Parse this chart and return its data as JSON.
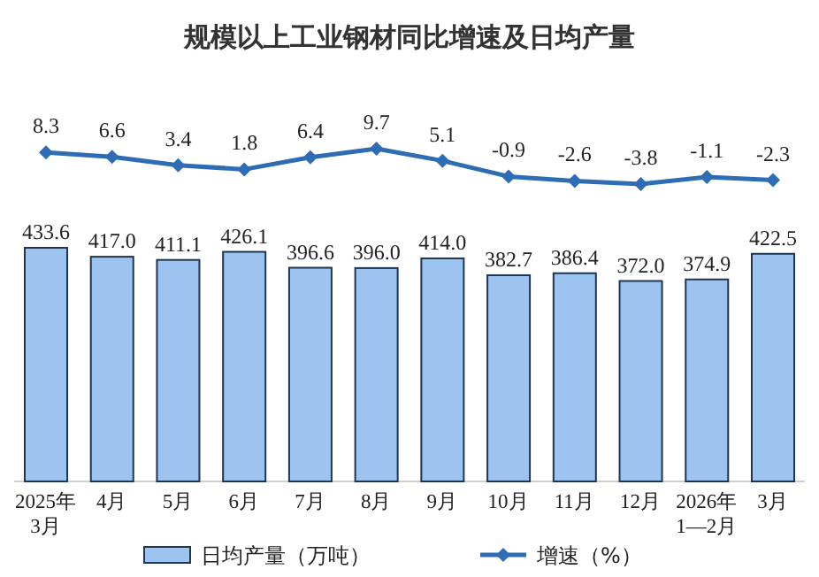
{
  "chart_data": [
    {
      "type": "line",
      "title": "规模以上工业钢材同比增速及日均产量",
      "categories": [
        null,
        null,
        null,
        null,
        null,
        null,
        null,
        null,
        null,
        null,
        null,
        null
      ],
      "series": [
        {
          "name": "增速（%）",
          "color": "#2e6db4",
          "values": [
            8.3,
            6.6,
            3.4,
            1.8,
            6.4,
            9.7,
            5.1,
            -0.9,
            -2.6,
            -3.8,
            -1.1,
            -2.3
          ]
        }
      ],
      "marker": "diamond",
      "data_labels": true,
      "legend": "bottom"
    },
    {
      "type": "bar",
      "categories": [
        "2025年\n3月",
        "4月",
        "5月",
        "6月",
        "7月",
        "8月",
        "9月",
        "10月",
        "11月",
        "12月",
        "2026年\n1—2月",
        "3月"
      ],
      "series": [
        {
          "name": "日均产量（万吨）",
          "color": "#9dc3f0",
          "values": [
            433.6,
            417.0,
            411.1,
            426.1,
            396.6,
            396.0,
            414.0,
            382.7,
            386.4,
            372.0,
            374.9,
            422.5
          ],
          "value_labels": [
            "433.6",
            "417.0",
            "411.1",
            "426.1",
            "396.6",
            "396.0",
            "414.0",
            "382.7",
            "386.4",
            "372.0",
            "374.9",
            "422.5"
          ]
        }
      ],
      "legend": "bottom"
    }
  ]
}
